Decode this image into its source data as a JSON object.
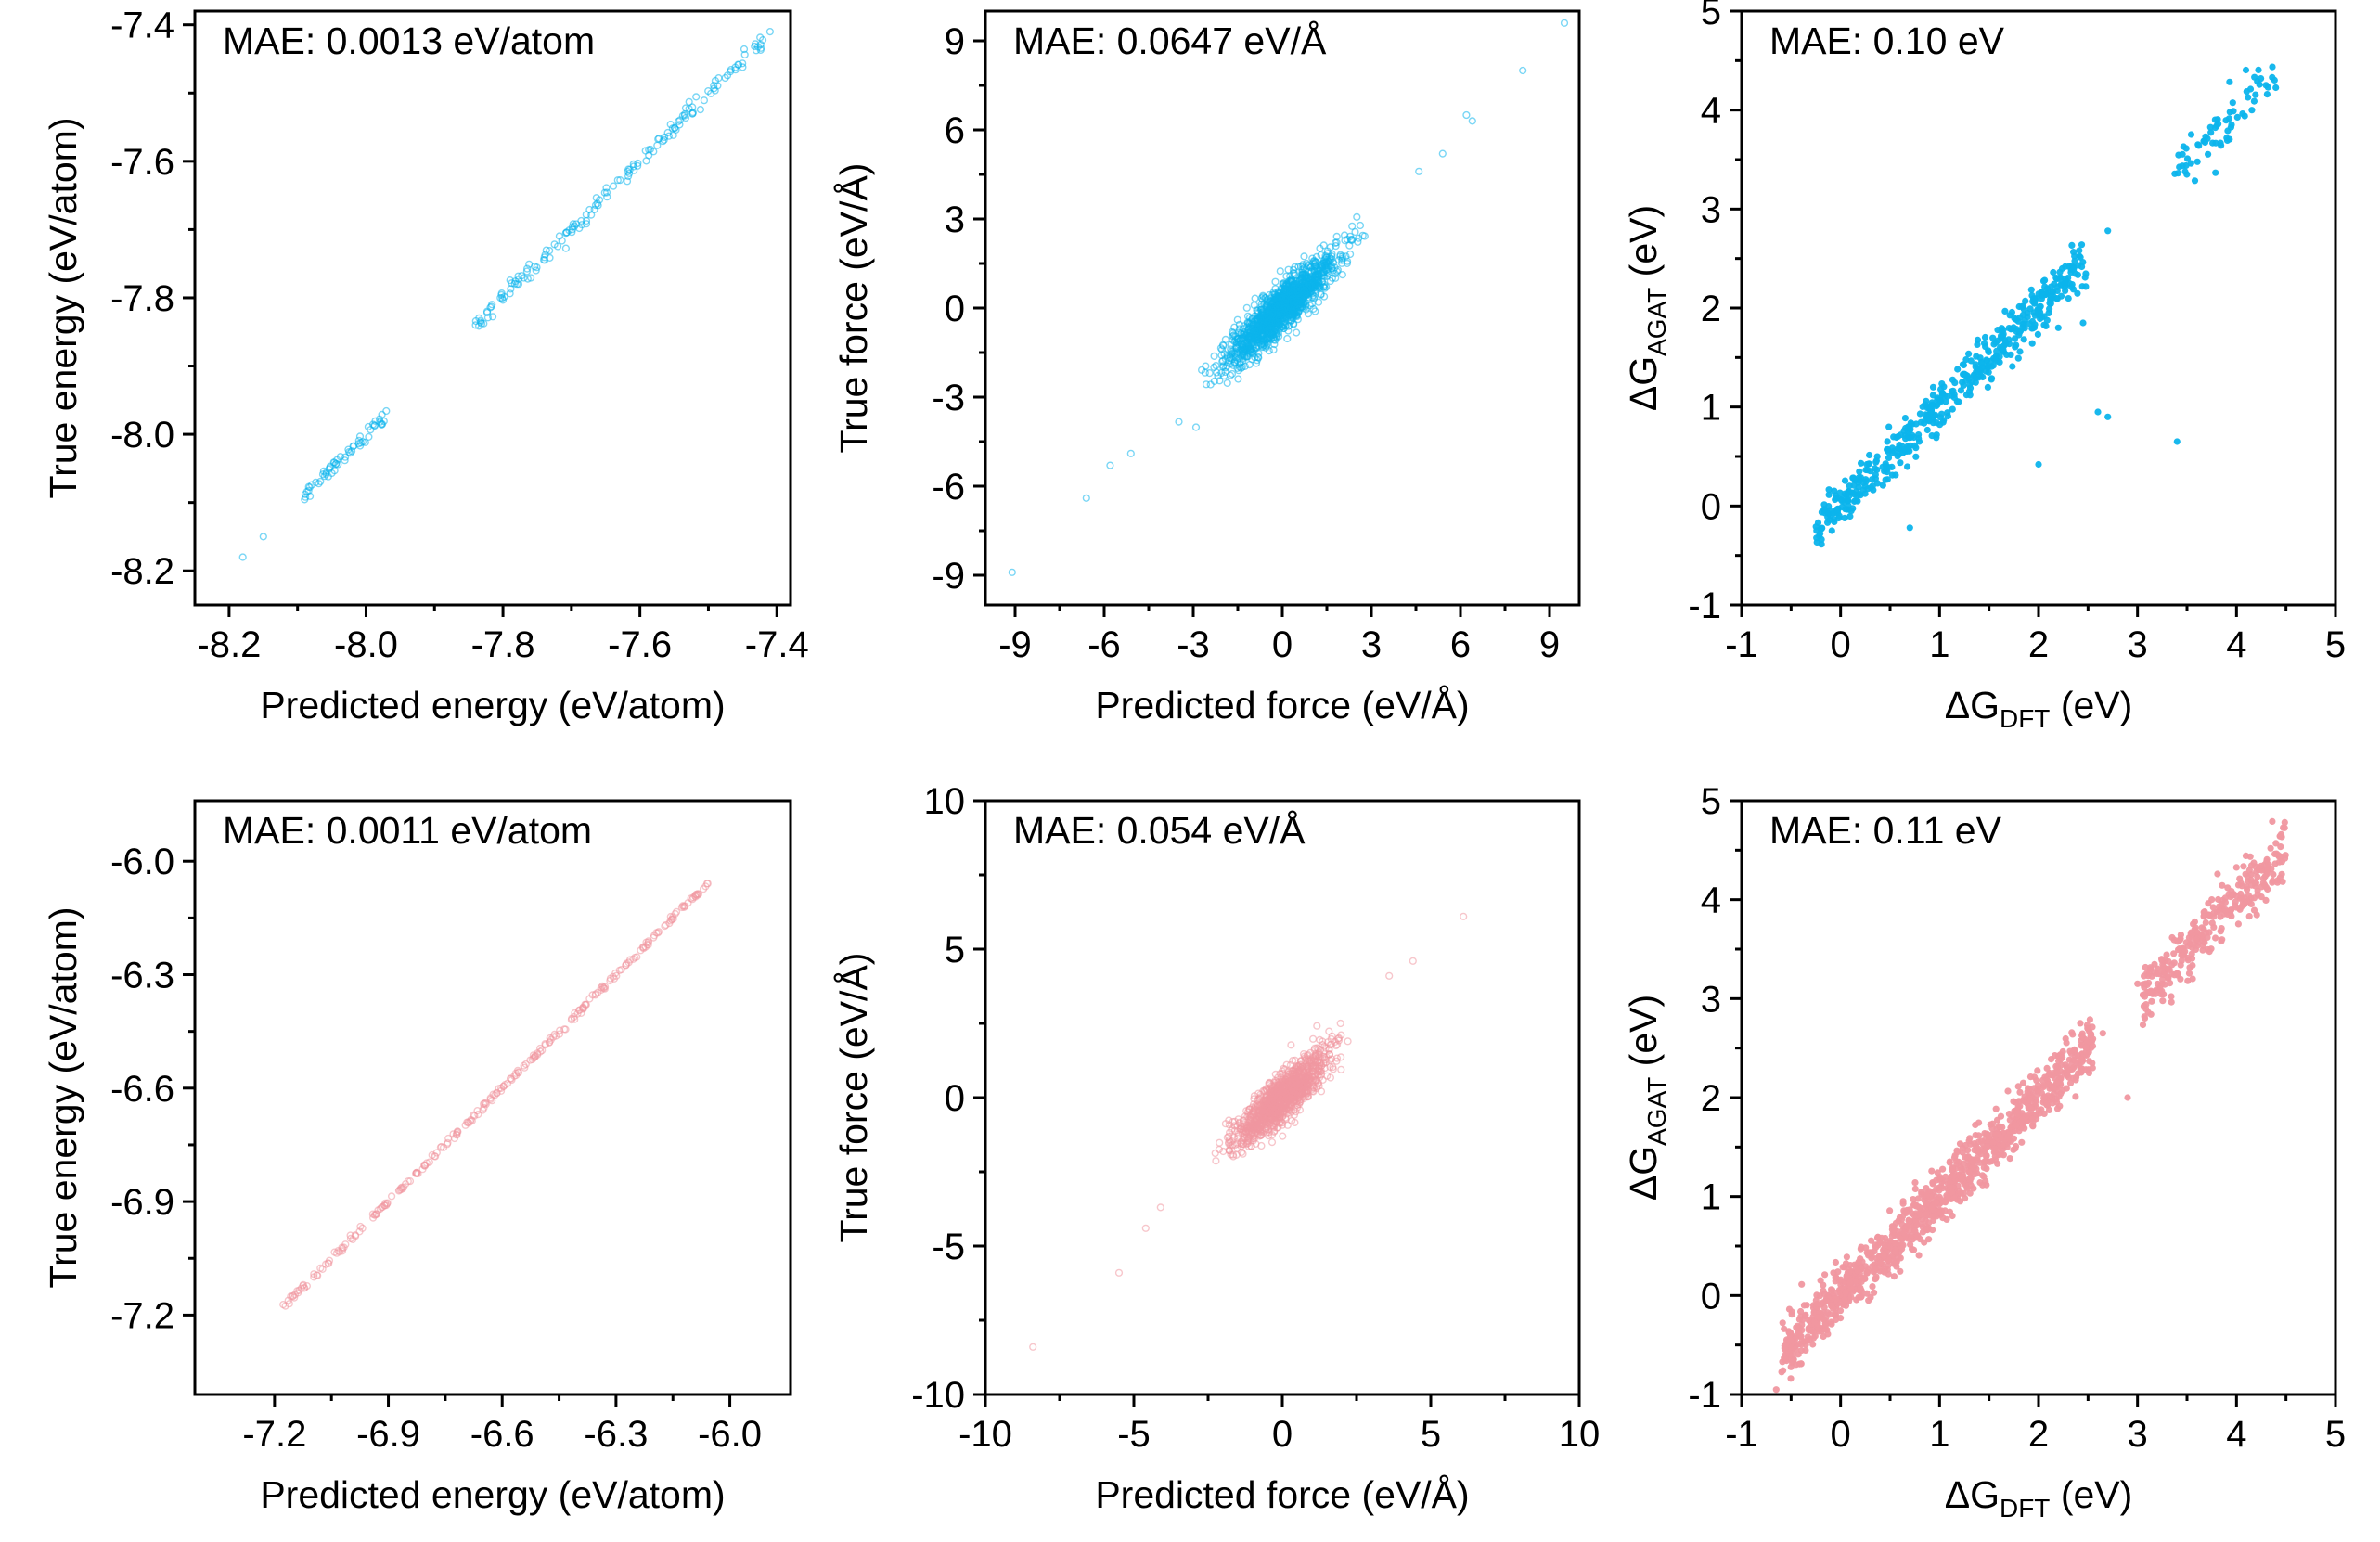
{
  "colors": {
    "blue": "#0CB4EC",
    "pink": "#F097A0",
    "frame": "#000000"
  },
  "chart_data": [
    {
      "type": "scatter",
      "panel": "top-left",
      "title": "",
      "annotation": "MAE: 0.0013 eV/atom",
      "xlabel": "Predicted energy (eV/atom)",
      "ylabel": "True energy (eV/atom)",
      "xlim": [
        -8.25,
        -7.38
      ],
      "ylim": [
        -8.25,
        -7.38
      ],
      "xticks": [
        -8.2,
        -8.0,
        -7.8,
        -7.6,
        -7.4
      ],
      "xtick_labels": [
        "-8.2",
        "-8.0",
        "-7.8",
        "-7.6",
        "-7.4"
      ],
      "yticks": [
        -8.2,
        -8.0,
        -7.8,
        -7.6,
        -7.4
      ],
      "ytick_labels": [
        "-8.2",
        "-8.0",
        "-7.8",
        "-7.6",
        "-7.4"
      ],
      "grid": false,
      "marker": "open-circle",
      "color": "#0CB4EC",
      "segments": [
        {
          "x0": -7.84,
          "x1": -7.42,
          "count": 160,
          "spread": 0.006
        },
        {
          "x0": -8.09,
          "x1": -7.97,
          "count": 60,
          "spread": 0.006
        }
      ],
      "points": [
        {
          "x": -8.18,
          "y": -8.18
        },
        {
          "x": -8.15,
          "y": -8.15
        },
        {
          "x": -7.84,
          "y": -7.84
        },
        {
          "x": -7.41,
          "y": -7.41
        }
      ]
    },
    {
      "type": "scatter",
      "panel": "top-middle",
      "title": "",
      "annotation": "MAE: 0.0647 eV/Å",
      "xlabel": "Predicted force (eV/Å)",
      "ylabel": "True force (eV/Å)",
      "xlim": [
        -10,
        10
      ],
      "ylim": [
        -10,
        10
      ],
      "xticks": [
        -9,
        -6,
        -3,
        0,
        3,
        6,
        9
      ],
      "xtick_labels": [
        "-9",
        "-6",
        "-3",
        "0",
        "3",
        "6",
        "9"
      ],
      "yticks": [
        -9,
        -6,
        -3,
        0,
        3,
        6,
        9
      ],
      "ytick_labels": [
        "-9",
        "-6",
        "-3",
        "0",
        "3",
        "6",
        "9"
      ],
      "grid": false,
      "marker": "open-circle",
      "color": "#0CB4EC",
      "cluster": {
        "cx": 0,
        "cy": 0,
        "sd_major": 1.25,
        "sd_minor": 0.28,
        "angle_deg": 45,
        "count": 1500
      },
      "points": [
        {
          "x": -9.1,
          "y": -8.9
        },
        {
          "x": -6.6,
          "y": -6.4
        },
        {
          "x": -5.8,
          "y": -5.3
        },
        {
          "x": -5.1,
          "y": -4.9
        },
        {
          "x": 4.6,
          "y": 4.6
        },
        {
          "x": 5.4,
          "y": 5.2
        },
        {
          "x": 6.2,
          "y": 6.5
        },
        {
          "x": 6.4,
          "y": 6.3
        },
        {
          "x": 8.1,
          "y": 8.0
        },
        {
          "x": 9.5,
          "y": 9.6
        }
      ]
    },
    {
      "type": "scatter",
      "panel": "top-right",
      "title": "",
      "annotation": "MAE: 0.10 eV",
      "xlabel": "ΔG",
      "xlabel_sub": "DFT",
      "xlabel_unit": " (eV)",
      "ylabel": "ΔG",
      "ylabel_sub": "AGAT",
      "ylabel_unit": " (eV)",
      "xlim": [
        -1,
        5
      ],
      "ylim": [
        -1,
        5
      ],
      "xticks": [
        -1,
        0,
        1,
        2,
        3,
        4,
        5
      ],
      "xtick_labels": [
        "-1",
        "0",
        "1",
        "2",
        "3",
        "4",
        "5"
      ],
      "yticks": [
        -1,
        0,
        1,
        2,
        3,
        4,
        5
      ],
      "ytick_labels": [
        "-1",
        "0",
        "1",
        "2",
        "3",
        "4",
        "5"
      ],
      "grid": false,
      "marker": "filled-dot",
      "color": "#0CB4EC",
      "segments": [
        {
          "x0": -0.25,
          "x1": 2.5,
          "count": 500,
          "spread": 0.12
        },
        {
          "x0": 3.35,
          "x1": 4.4,
          "count": 70,
          "spread": 0.13
        }
      ],
      "points": [
        {
          "x": 2.7,
          "y": 2.78
        },
        {
          "x": 2.0,
          "y": 0.42
        },
        {
          "x": 2.6,
          "y": 0.95
        },
        {
          "x": 2.7,
          "y": 0.9
        },
        {
          "x": 3.4,
          "y": 0.65
        },
        {
          "x": 2.2,
          "y": 1.8
        },
        {
          "x": 0.7,
          "y": -0.22
        },
        {
          "x": 2.45,
          "y": 1.85
        }
      ]
    },
    {
      "type": "scatter",
      "panel": "bottom-left",
      "title": "",
      "annotation": "MAE: 0.0011 eV/atom",
      "xlabel": "Predicted energy (eV/atom)",
      "ylabel": "True energy (eV/atom)",
      "xlim": [
        -7.41,
        -5.84
      ],
      "ylim": [
        -7.41,
        -5.84
      ],
      "xticks": [
        -7.2,
        -6.9,
        -6.6,
        -6.3,
        -6.0
      ],
      "xtick_labels": [
        "-7.2",
        "-6.9",
        "-6.6",
        "-6.3",
        "-6.0"
      ],
      "yticks": [
        -7.2,
        -6.9,
        -6.6,
        -6.3,
        -6.0
      ],
      "ytick_labels": [
        "-7.2",
        "-6.9",
        "-6.6",
        "-6.3",
        "-6.0"
      ],
      "grid": false,
      "marker": "open-circle",
      "color": "#F097A0",
      "segments": [
        {
          "x0": -7.18,
          "x1": -6.05,
          "count": 260,
          "spread": 0.004
        }
      ],
      "points": []
    },
    {
      "type": "scatter",
      "panel": "bottom-middle",
      "title": "",
      "annotation": "MAE: 0.054 eV/Å",
      "xlabel": "Predicted force (eV/Å)",
      "ylabel": "True force (eV/Å)",
      "xlim": [
        -10,
        10
      ],
      "ylim": [
        -10,
        10
      ],
      "xticks": [
        -10,
        -5,
        0,
        5,
        10
      ],
      "xtick_labels": [
        "-10",
        "-5",
        "0",
        "5",
        "10"
      ],
      "yticks": [
        -10,
        -5,
        0,
        5,
        10
      ],
      "ytick_labels": [
        "-10",
        "-5",
        "0",
        "5",
        "10"
      ],
      "grid": false,
      "marker": "open-circle",
      "color": "#F097A0",
      "cluster": {
        "cx": 0,
        "cy": 0,
        "sd_major": 1.05,
        "sd_minor": 0.28,
        "angle_deg": 45,
        "count": 1200
      },
      "points": [
        {
          "x": -8.4,
          "y": -8.4
        },
        {
          "x": -5.5,
          "y": -5.9
        },
        {
          "x": -4.6,
          "y": -4.4
        },
        {
          "x": -4.1,
          "y": -3.7
        },
        {
          "x": 3.6,
          "y": 4.1
        },
        {
          "x": 4.4,
          "y": 4.6
        },
        {
          "x": 6.1,
          "y": 6.1
        }
      ]
    },
    {
      "type": "scatter",
      "panel": "bottom-right",
      "title": "",
      "annotation": "MAE: 0.11 eV",
      "xlabel": "ΔG",
      "xlabel_sub": "DFT",
      "xlabel_unit": " (eV)",
      "ylabel": "ΔG",
      "ylabel_sub": "AGAT",
      "ylabel_unit": " (eV)",
      "xlim": [
        -1,
        5
      ],
      "ylim": [
        -1,
        5
      ],
      "xticks": [
        -1,
        0,
        1,
        2,
        3,
        4,
        5
      ],
      "xtick_labels": [
        "-1",
        "0",
        "1",
        "2",
        "3",
        "4",
        "5"
      ],
      "yticks": [
        -1,
        0,
        1,
        2,
        3,
        4,
        5
      ],
      "ytick_labels": [
        "-1",
        "0",
        "1",
        "2",
        "3",
        "4",
        "5"
      ],
      "grid": false,
      "marker": "filled-dot",
      "color": "#F097A0",
      "segments": [
        {
          "x0": -0.6,
          "x1": 2.55,
          "count": 1100,
          "spread": 0.14
        },
        {
          "x0": 3.05,
          "x1": 4.5,
          "count": 300,
          "spread": 0.15
        }
      ],
      "points": [
        {
          "x": -0.65,
          "y": -0.95
        },
        {
          "x": 2.65,
          "y": 2.65
        },
        {
          "x": 3.0,
          "y": 3.15
        },
        {
          "x": 2.9,
          "y": 2.0
        }
      ]
    }
  ]
}
